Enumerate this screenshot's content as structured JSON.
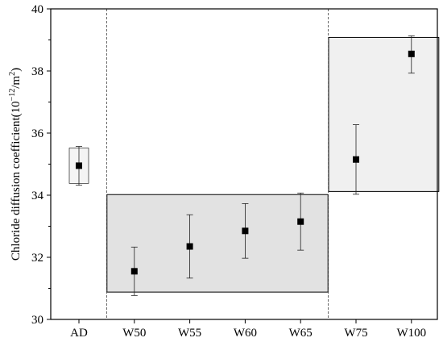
{
  "chart_data": {
    "type": "scatter",
    "title": "",
    "xlabel": "",
    "ylabel": "Chloride diffusion coefficient(10",
    "ylabel_sup": "−12",
    "ylabel_unit": "/m",
    "ylabel_unit_sup": "2",
    "ylabel_close": ")",
    "categories": [
      "AD",
      "W50",
      "W55",
      "W60",
      "W65",
      "W75",
      "W100"
    ],
    "values": [
      34.95,
      31.55,
      32.35,
      32.85,
      33.15,
      35.15,
      38.55
    ],
    "error_low": [
      34.32,
      30.77,
      31.33,
      31.97,
      32.23,
      34.03,
      37.93
    ],
    "error_high": [
      35.57,
      32.33,
      33.37,
      33.73,
      34.07,
      36.27,
      39.13
    ],
    "ylim": [
      30,
      40
    ],
    "yticks": [
      "30",
      "32",
      "34",
      "36",
      "38",
      "40"
    ],
    "grid": false,
    "groups": [
      {
        "name": "AD",
        "members": [
          "AD"
        ],
        "box_range": [
          34.38,
          35.52
        ],
        "fill": "#f4f4f4"
      },
      {
        "name": "W50-W65",
        "members": [
          "W50",
          "W55",
          "W60",
          "W65"
        ],
        "box_range": [
          30.88,
          34.02
        ],
        "fill": "#e2e2e2"
      },
      {
        "name": "W75-W100",
        "members": [
          "W75",
          "W100"
        ],
        "box_range": [
          34.12,
          39.08
        ],
        "fill": "#f0f0f0"
      }
    ],
    "separators_after": [
      "AD",
      "W65"
    ],
    "marker_color": "#000000"
  }
}
